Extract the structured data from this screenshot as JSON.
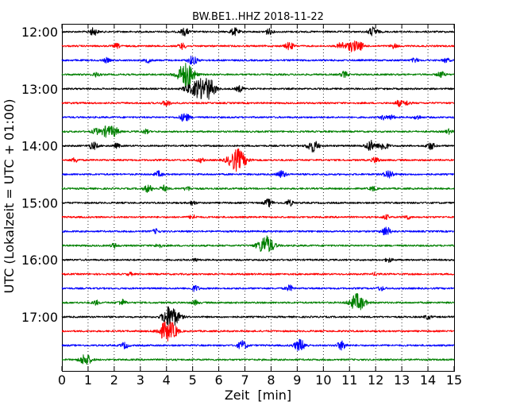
{
  "chart_data": {
    "type": "line",
    "title": "BW.BE1..HHZ 2018-11-22",
    "xlabel": "Zeit  [min]",
    "ylabel": "UTC (Lokalzeit = UTC + 01:00)",
    "xlim": [
      0,
      15
    ],
    "x_ticks": [
      0,
      1,
      2,
      3,
      4,
      5,
      6,
      7,
      8,
      9,
      10,
      11,
      12,
      13,
      14,
      15
    ],
    "x_tick_labels": [
      "0",
      "1",
      "2",
      "3",
      "4",
      "5",
      "6",
      "7",
      "8",
      "9",
      "10",
      "11",
      "12",
      "13",
      "14",
      "15"
    ],
    "y_tick_labels": [
      {
        "label": "12:00",
        "trace": 0
      },
      {
        "label": "13:00",
        "trace": 4
      },
      {
        "label": "14:00",
        "trace": 8
      },
      {
        "label": "15:00",
        "trace": 12
      },
      {
        "label": "16:00",
        "trace": 16
      },
      {
        "label": "17:00",
        "trace": 20
      }
    ],
    "vertical_grid": true,
    "trace_minutes": 15,
    "colors": [
      "#000000",
      "#ff0000",
      "#0000ff",
      "#008000"
    ],
    "series": [
      {
        "start": "12:00",
        "color": "#000000",
        "events": [
          [
            1.2,
            0.5
          ],
          [
            4.7,
            0.5
          ],
          [
            6.6,
            0.5
          ],
          [
            7.9,
            0.4
          ],
          [
            11.9,
            0.6
          ]
        ]
      },
      {
        "start": "12:15",
        "color": "#ff0000",
        "events": [
          [
            2.1,
            0.3
          ],
          [
            4.6,
            0.4
          ],
          [
            8.7,
            0.5
          ],
          [
            10.7,
            0.5
          ],
          [
            11.1,
            0.7
          ],
          [
            11.4,
            0.5
          ],
          [
            12.7,
            0.3
          ]
        ]
      },
      {
        "start": "12:30",
        "color": "#0000ff",
        "events": [
          [
            1.7,
            0.3
          ],
          [
            3.3,
            0.3
          ],
          [
            5.0,
            0.6
          ],
          [
            13.5,
            0.3
          ],
          [
            14.7,
            0.3
          ]
        ]
      },
      {
        "start": "12:45",
        "color": "#008000",
        "events": [
          [
            1.3,
            0.3
          ],
          [
            4.7,
            1.4
          ],
          [
            4.9,
            0.6
          ],
          [
            10.8,
            0.4
          ],
          [
            14.5,
            0.4
          ]
        ]
      },
      {
        "start": "13:00",
        "color": "#000000",
        "events": [
          [
            4.8,
            0.5
          ],
          [
            5.1,
            0.6
          ],
          [
            5.4,
            1.3
          ],
          [
            5.7,
            0.8
          ],
          [
            6.8,
            0.4
          ]
        ]
      },
      {
        "start": "13:15",
        "color": "#ff0000",
        "events": [
          [
            4.0,
            0.4
          ],
          [
            12.9,
            0.4
          ],
          [
            13.2,
            0.3
          ]
        ]
      },
      {
        "start": "13:30",
        "color": "#0000ff",
        "events": [
          [
            4.7,
            0.6
          ],
          [
            12.3,
            0.3
          ],
          [
            12.6,
            0.3
          ],
          [
            13.6,
            0.3
          ]
        ]
      },
      {
        "start": "13:45",
        "color": "#008000",
        "events": [
          [
            1.3,
            0.4
          ],
          [
            1.7,
            0.7
          ],
          [
            2.0,
            0.6
          ],
          [
            3.2,
            0.3
          ],
          [
            14.8,
            0.3
          ]
        ]
      },
      {
        "start": "14:00",
        "color": "#000000",
        "events": [
          [
            1.2,
            0.5
          ],
          [
            2.1,
            0.3
          ],
          [
            9.6,
            0.8
          ],
          [
            11.8,
            0.7
          ],
          [
            12.3,
            0.6
          ],
          [
            14.1,
            0.5
          ]
        ]
      },
      {
        "start": "14:15",
        "color": "#ff0000",
        "events": [
          [
            0.5,
            0.3
          ],
          [
            5.3,
            0.3
          ],
          [
            6.7,
            1.5
          ],
          [
            12.0,
            0.4
          ]
        ]
      },
      {
        "start": "14:30",
        "color": "#0000ff",
        "events": [
          [
            3.7,
            0.4
          ],
          [
            8.4,
            0.5
          ],
          [
            12.5,
            0.6
          ]
        ]
      },
      {
        "start": "14:45",
        "color": "#008000",
        "events": [
          [
            3.3,
            0.5
          ],
          [
            3.9,
            0.4
          ],
          [
            4.8,
            0.3
          ],
          [
            11.9,
            0.3
          ]
        ]
      },
      {
        "start": "15:00",
        "color": "#000000",
        "events": [
          [
            5.0,
            0.3
          ],
          [
            7.9,
            0.5
          ],
          [
            8.7,
            0.4
          ]
        ]
      },
      {
        "start": "15:15",
        "color": "#ff0000",
        "events": [
          [
            5.0,
            0.3
          ],
          [
            12.4,
            0.3
          ],
          [
            13.2,
            0.3
          ]
        ]
      },
      {
        "start": "15:30",
        "color": "#0000ff",
        "events": [
          [
            3.6,
            0.3
          ],
          [
            12.4,
            0.6
          ]
        ]
      },
      {
        "start": "15:45",
        "color": "#008000",
        "events": [
          [
            7.8,
            1.3
          ],
          [
            3.7,
            0.3
          ],
          [
            2.0,
            0.3
          ]
        ]
      },
      {
        "start": "16:00",
        "color": "#000000",
        "events": [
          [
            12.5,
            0.3
          ],
          [
            5.1,
            0.2
          ]
        ]
      },
      {
        "start": "16:15",
        "color": "#ff0000",
        "events": [
          [
            2.6,
            0.2
          ],
          [
            12.0,
            0.2
          ]
        ]
      },
      {
        "start": "16:30",
        "color": "#0000ff",
        "events": [
          [
            5.1,
            0.4
          ],
          [
            8.7,
            0.4
          ],
          [
            12.2,
            0.3
          ]
        ]
      },
      {
        "start": "16:45",
        "color": "#008000",
        "events": [
          [
            1.3,
            0.3
          ],
          [
            2.3,
            0.4
          ],
          [
            5.1,
            0.3
          ],
          [
            11.3,
            1.2
          ]
        ]
      },
      {
        "start": "17:00",
        "color": "#000000",
        "events": [
          [
            4.2,
            1.3
          ],
          [
            4.0,
            0.5
          ],
          [
            14.0,
            0.3
          ]
        ]
      },
      {
        "start": "17:15",
        "color": "#ff0000",
        "events": [
          [
            4.0,
            1.3
          ],
          [
            4.3,
            0.5
          ]
        ]
      },
      {
        "start": "17:30",
        "color": "#0000ff",
        "events": [
          [
            2.4,
            0.4
          ],
          [
            6.9,
            0.6
          ],
          [
            9.1,
            0.8
          ],
          [
            10.7,
            0.6
          ]
        ]
      },
      {
        "start": "17:45",
        "color": "#008000",
        "events": [
          [
            0.9,
            0.8
          ]
        ]
      }
    ]
  }
}
